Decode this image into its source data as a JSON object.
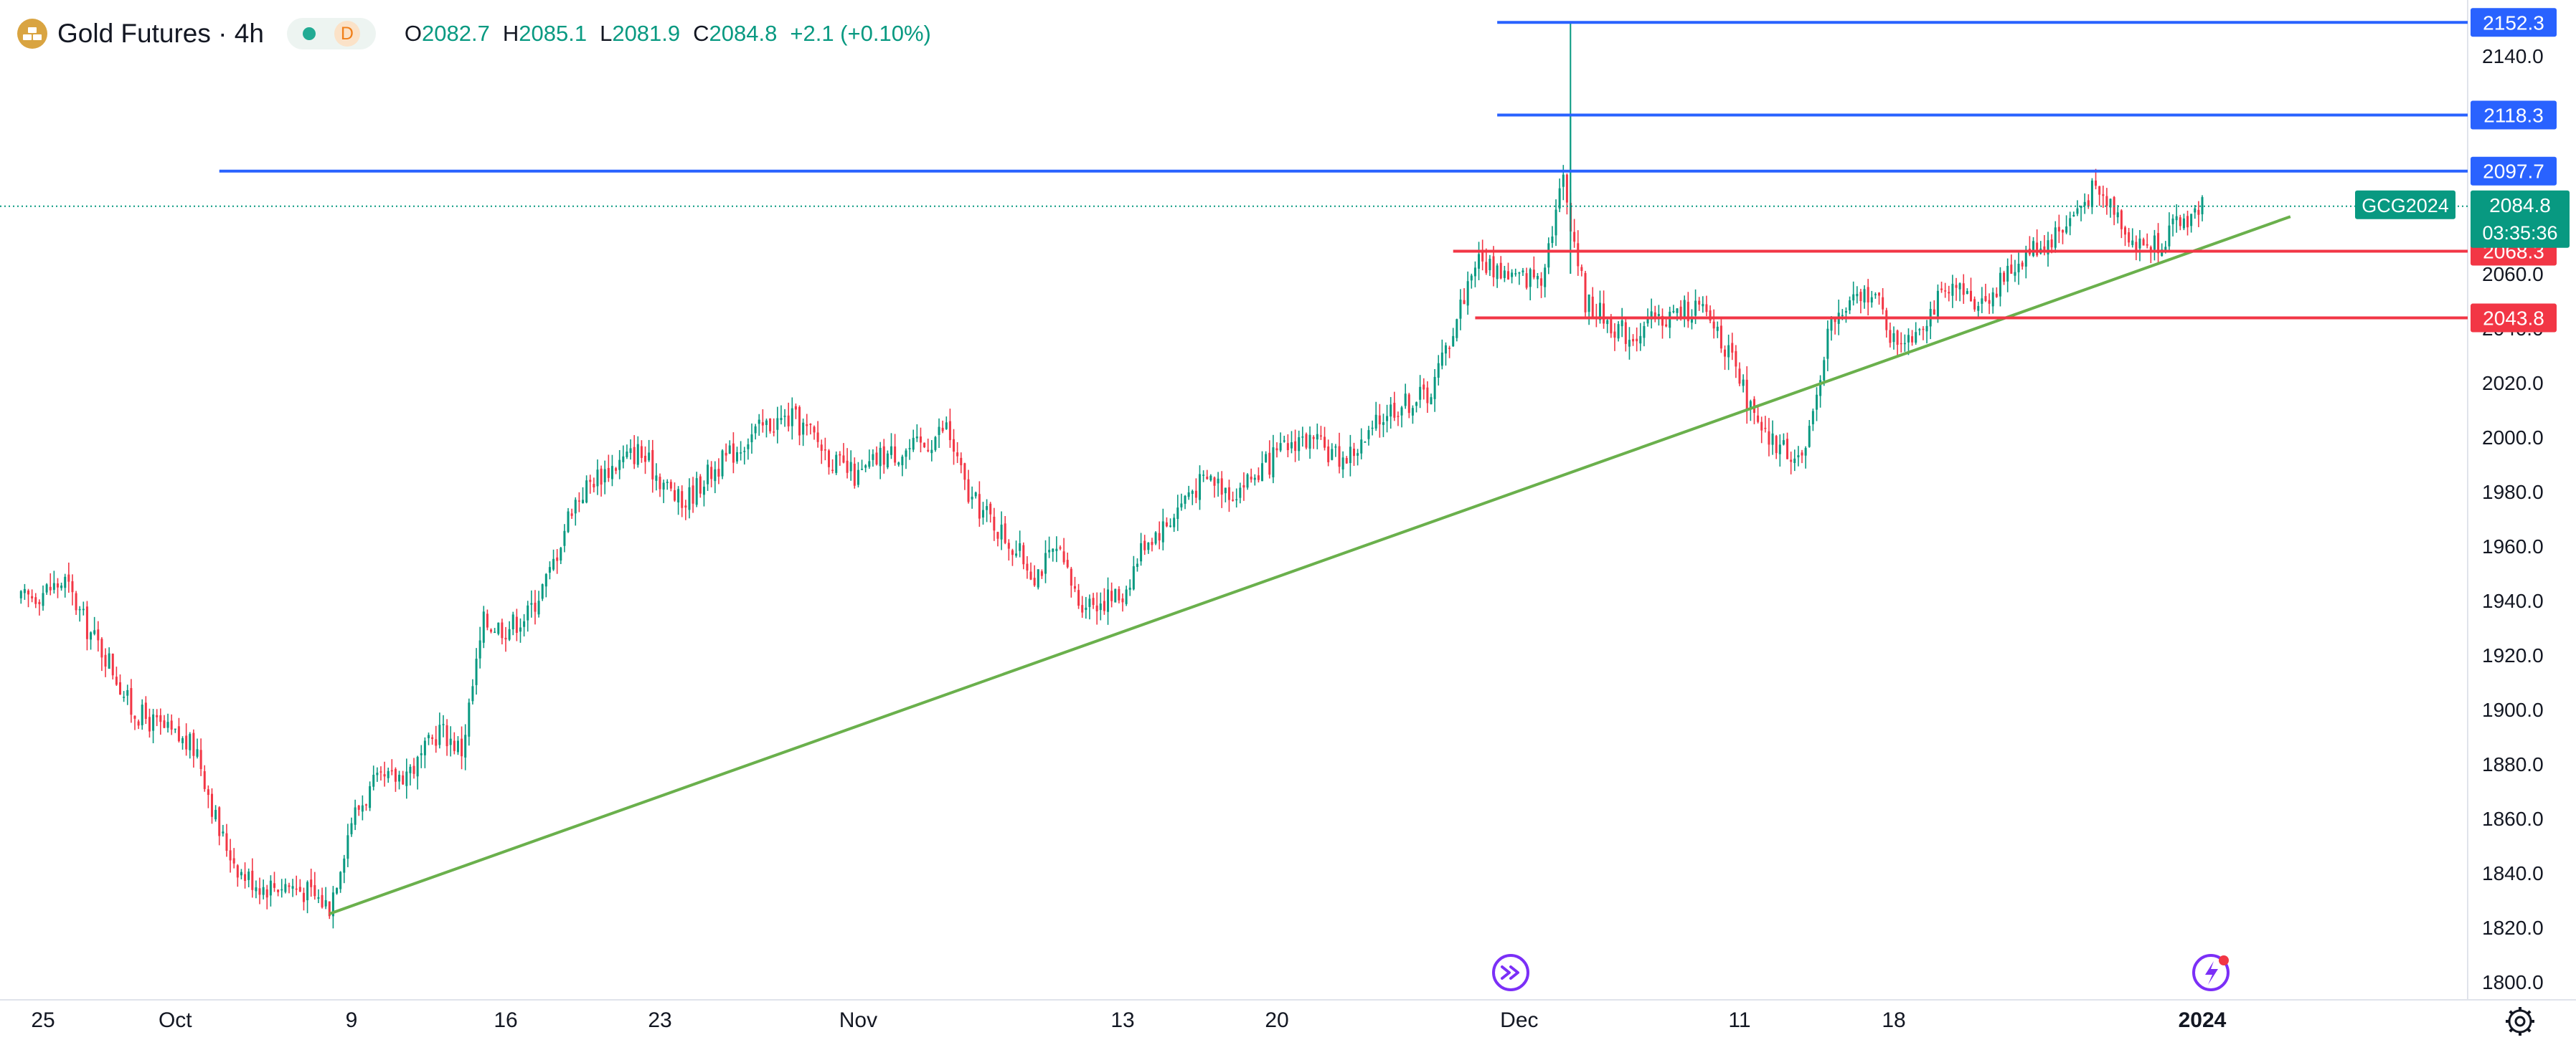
{
  "header": {
    "symbol_title": "Gold Futures · 4h",
    "badge_letter": "D",
    "ohlc": [
      {
        "label": "O",
        "value": "2082.7"
      },
      {
        "label": "H",
        "value": "2085.1"
      },
      {
        "label": "L",
        "value": "2081.9"
      },
      {
        "label": "C",
        "value": "2084.8"
      }
    ],
    "change": "+2.1 (+0.10%)"
  },
  "colors": {
    "up": "#089981",
    "down": "#f23645",
    "resistance": "#2962ff",
    "support": "#f23645",
    "trendline": "#6ab04c"
  },
  "icons": [
    "gold-logo-icon",
    "market-status-dot-icon",
    "forward-replay-icon",
    "flash-alert-icon",
    "settings-gear-icon"
  ],
  "chart_data": {
    "type": "candlestick",
    "interval": "4h",
    "ylim": [
      1795,
      2160
    ],
    "y_ticks": [
      "2140.0",
      "2120.0",
      "2100.0",
      "2080.0",
      "2060.0",
      "2040.0",
      "2020.0",
      "2000.0",
      "1980.0",
      "1960.0",
      "1940.0",
      "1920.0",
      "1900.0",
      "1880.0",
      "1860.0",
      "1840.0",
      "1820.0",
      "1800.0"
    ],
    "x_ticks": [
      {
        "label": "25",
        "date": "2023-09-25",
        "bold": false
      },
      {
        "label": "Oct",
        "date": "2023-10-01",
        "bold": false
      },
      {
        "label": "9",
        "date": "2023-10-09",
        "bold": false
      },
      {
        "label": "16",
        "date": "2023-10-16",
        "bold": false
      },
      {
        "label": "23",
        "date": "2023-10-23",
        "bold": false
      },
      {
        "label": "Nov",
        "date": "2023-11-01",
        "bold": false
      },
      {
        "label": "13",
        "date": "2023-11-13",
        "bold": false
      },
      {
        "label": "20",
        "date": "2023-11-20",
        "bold": false
      },
      {
        "label": "Dec",
        "date": "2023-12-01",
        "bold": false
      },
      {
        "label": "11",
        "date": "2023-12-11",
        "bold": false
      },
      {
        "label": "18",
        "date": "2023-12-18",
        "bold": false
      },
      {
        "label": "2024",
        "date": "2024-01-01",
        "bold": true
      }
    ],
    "price_path": [
      [
        "2023-09-24",
        1940
      ],
      [
        "2023-09-26",
        1947
      ],
      [
        "2023-09-27",
        1930
      ],
      [
        "2023-09-28",
        1918
      ],
      [
        "2023-09-29",
        1900
      ],
      [
        "2023-10-02",
        1885
      ],
      [
        "2023-10-03",
        1855
      ],
      [
        "2023-10-04",
        1840
      ],
      [
        "2023-10-05",
        1835
      ],
      [
        "2023-10-06",
        1836
      ],
      [
        "2023-10-07",
        1833
      ],
      [
        "2023-10-08",
        1828
      ],
      [
        "2023-10-09",
        1860
      ],
      [
        "2023-10-10",
        1872
      ],
      [
        "2023-10-11",
        1875
      ],
      [
        "2023-10-12",
        1880
      ],
      [
        "2023-10-13",
        1893
      ],
      [
        "2023-10-14",
        1885
      ],
      [
        "2023-10-15",
        1932
      ],
      [
        "2023-10-16",
        1930
      ],
      [
        "2023-10-17",
        1935
      ],
      [
        "2023-10-18",
        1950
      ],
      [
        "2023-10-19",
        1975
      ],
      [
        "2023-10-20",
        1985
      ],
      [
        "2023-10-21",
        1990
      ],
      [
        "2023-10-22",
        1995
      ],
      [
        "2023-10-23",
        1985
      ],
      [
        "2023-10-24",
        1975
      ],
      [
        "2023-10-25",
        1985
      ],
      [
        "2023-10-26",
        1992
      ],
      [
        "2023-10-27",
        2000
      ],
      [
        "2023-10-28",
        2005
      ],
      [
        "2023-10-29",
        2007
      ],
      [
        "2023-10-30",
        2000
      ],
      [
        "2023-10-31",
        1990
      ],
      [
        "2023-11-01",
        1985
      ],
      [
        "2023-11-02",
        1993
      ],
      [
        "2023-11-03",
        1995
      ],
      [
        "2023-11-04",
        1997
      ],
      [
        "2023-11-05",
        2004
      ],
      [
        "2023-11-06",
        1978
      ],
      [
        "2023-11-07",
        1970
      ],
      [
        "2023-11-08",
        1960
      ],
      [
        "2023-11-09",
        1950
      ],
      [
        "2023-11-10",
        1958
      ],
      [
        "2023-11-11",
        1940
      ],
      [
        "2023-11-12",
        1940
      ],
      [
        "2023-11-13",
        1942
      ],
      [
        "2023-11-14",
        1962
      ],
      [
        "2023-11-15",
        1968
      ],
      [
        "2023-11-16",
        1980
      ],
      [
        "2023-11-17",
        1985
      ],
      [
        "2023-11-18",
        1980
      ],
      [
        "2023-11-19",
        1986
      ],
      [
        "2023-11-20",
        1993
      ],
      [
        "2023-11-21",
        2000
      ],
      [
        "2023-11-22",
        1996
      ],
      [
        "2023-11-23",
        1992
      ],
      [
        "2023-11-24",
        1998
      ],
      [
        "2023-11-25",
        2010
      ],
      [
        "2023-11-26",
        2013
      ],
      [
        "2023-11-27",
        2017
      ],
      [
        "2023-11-28",
        2040
      ],
      [
        "2023-11-29",
        2065
      ],
      [
        "2023-11-30",
        2062
      ],
      [
        "2023-12-01",
        2058
      ],
      [
        "2023-12-02",
        2060
      ],
      [
        "2023-12-03",
        2095
      ],
      [
        "2023-12-04",
        2050
      ],
      [
        "2023-12-05",
        2043
      ],
      [
        "2023-12-06",
        2037
      ],
      [
        "2023-12-07",
        2042
      ],
      [
        "2023-12-08",
        2045
      ],
      [
        "2023-12-09",
        2048
      ],
      [
        "2023-12-10",
        2040
      ],
      [
        "2023-12-11",
        2020
      ],
      [
        "2023-12-12",
        2000
      ],
      [
        "2023-12-13",
        1996
      ],
      [
        "2023-12-14",
        1992
      ],
      [
        "2023-12-15",
        2040
      ],
      [
        "2023-12-16",
        2048
      ],
      [
        "2023-12-17",
        2055
      ],
      [
        "2023-12-18",
        2035
      ],
      [
        "2023-12-19",
        2040
      ],
      [
        "2023-12-20",
        2050
      ],
      [
        "2023-12-21",
        2053
      ],
      [
        "2023-12-22",
        2050
      ],
      [
        "2023-12-23",
        2058
      ],
      [
        "2023-12-24",
        2068
      ],
      [
        "2023-12-25",
        2072
      ],
      [
        "2023-12-26",
        2080
      ],
      [
        "2023-12-27",
        2090
      ],
      [
        "2023-12-28",
        2085
      ],
      [
        "2023-12-29",
        2070
      ],
      [
        "2023-12-30",
        2072
      ],
      [
        "2024-01-01",
        2085
      ]
    ],
    "extreme_wicks": [
      {
        "date": "2023-12-03",
        "high": 2152.3,
        "low": 2060
      },
      {
        "date": "2023-12-03",
        "high": 2118.3,
        "low": 2080
      }
    ],
    "horizontal_levels": [
      {
        "price": 2152.3,
        "label": "2152.3",
        "color": "#2962ff",
        "from": "2023-11-30"
      },
      {
        "price": 2118.3,
        "label": "2118.3",
        "color": "#2962ff",
        "from": "2023-11-30"
      },
      {
        "price": 2097.7,
        "label": "2097.7",
        "color": "#2962ff",
        "from": "2023-10-03"
      },
      {
        "price": 2068.3,
        "label": "2068.3",
        "color": "#f23645",
        "from": "2023-11-28"
      },
      {
        "price": 2043.8,
        "label": "2043.8",
        "color": "#f23645",
        "from": "2023-11-29"
      }
    ],
    "trendline": {
      "from": [
        "2023-10-08",
        1825
      ],
      "to": [
        "2024-01-05",
        2081
      ],
      "color": "#6ab04c"
    },
    "last_price": {
      "value": 2084.8,
      "label": "2084.8",
      "symbol": "GCG2024",
      "countdown": "03:35:36"
    }
  }
}
